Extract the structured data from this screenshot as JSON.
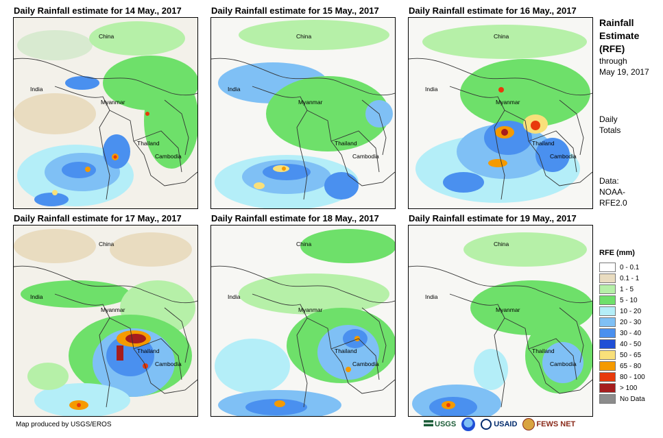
{
  "panels": [
    {
      "title": "Daily Rainfall estimate for 14 May., 2017"
    },
    {
      "title": "Daily Rainfall estimate for 15 May., 2017"
    },
    {
      "title": "Daily Rainfall estimate for 16 May., 2017"
    },
    {
      "title": "Daily Rainfall estimate for 17 May., 2017"
    },
    {
      "title": "Daily Rainfall estimate for 18 May., 2017"
    },
    {
      "title": "Daily Rainfall estimate for 19 May., 2017"
    }
  ],
  "map_labels": {
    "china": "China",
    "india": "India",
    "myanmar": "Myanmar",
    "thailand": "Thailand",
    "cambodia": "Cambodia"
  },
  "sidebar": {
    "title_line1": "Rainfall",
    "title_line2": "Estimate",
    "title_line3": "(RFE)",
    "through": "through",
    "date": "May 19, 2017",
    "daily": "Daily",
    "totals": "Totals",
    "data": "Data:",
    "source1": "NOAA-",
    "source2": "RFE2.0"
  },
  "legend": {
    "title": "RFE (mm)",
    "items": [
      {
        "label": "0 - 0.1",
        "color": "#ffffff"
      },
      {
        "label": "0.1 - 1",
        "color": "#e9dcc0"
      },
      {
        "label": "1 - 5",
        "color": "#b6f0a8"
      },
      {
        "label": "5 - 10",
        "color": "#6ee06a"
      },
      {
        "label": "10 - 20",
        "color": "#b4eef8"
      },
      {
        "label": "20 - 30",
        "color": "#7fc0f5"
      },
      {
        "label": "30 - 40",
        "color": "#4a90ef"
      },
      {
        "label": "40 - 50",
        "color": "#1f4fd6"
      },
      {
        "label": "50 - 65",
        "color": "#f9e07a"
      },
      {
        "label": "65 - 80",
        "color": "#f59a00"
      },
      {
        "label": "80 - 100",
        "color": "#e83a0c"
      },
      {
        "label": "> 100",
        "color": "#a61d1d"
      },
      {
        "label": "No Data",
        "color": "#8c8c8c"
      }
    ]
  },
  "credit": "Map produced by USGS/EROS",
  "logos": {
    "usgs": "USGS",
    "usaid": "USAID",
    "fewsnet": "FEWS NET"
  }
}
